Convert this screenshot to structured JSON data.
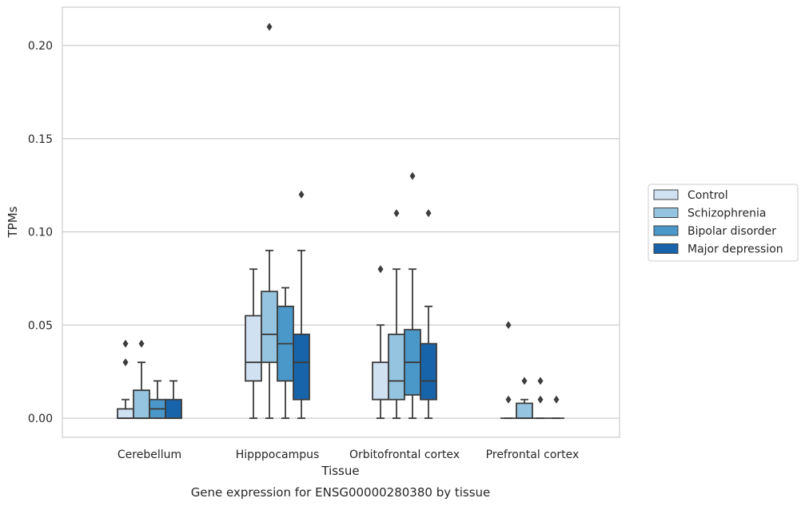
{
  "caption": "Gene expression for ENSG00000280380 by tissue",
  "chart_data": {
    "type": "box",
    "xlabel": "Tissue",
    "ylabel": "TPMs",
    "ylim": [
      -0.01,
      0.22
    ],
    "yticks": [
      0.0,
      0.05,
      0.1,
      0.15,
      0.2
    ],
    "ytick_labels": [
      "0.00",
      "0.05",
      "0.10",
      "0.15",
      "0.20"
    ],
    "grid": "horizontal",
    "legend_position": "right",
    "categories": [
      "Cerebellum",
      "Hipppocampus",
      "Orbitofrontal cortex",
      "Prefrontal cortex"
    ],
    "series": [
      {
        "name": "Control",
        "color": "#d0e1f2",
        "boxes": [
          {
            "whislo": 0.0,
            "q1": 0.0,
            "med": 0.0,
            "q3": 0.005,
            "whishi": 0.01,
            "fliers": [
              0.03,
              0.04
            ]
          },
          {
            "whislo": 0.0,
            "q1": 0.02,
            "med": 0.03,
            "q3": 0.055,
            "whishi": 0.08,
            "fliers": []
          },
          {
            "whislo": 0.0,
            "q1": 0.01,
            "med": 0.01,
            "q3": 0.03,
            "whishi": 0.05,
            "fliers": [
              0.08
            ]
          },
          {
            "whislo": 0.0,
            "q1": 0.0,
            "med": 0.0,
            "q3": 0.0,
            "whishi": 0.0,
            "fliers": [
              0.01,
              0.05
            ]
          }
        ]
      },
      {
        "name": "Schizophrenia",
        "color": "#94c4df",
        "boxes": [
          {
            "whislo": 0.0,
            "q1": 0.0,
            "med": 0.0,
            "q3": 0.015,
            "whishi": 0.03,
            "fliers": [
              0.04
            ]
          },
          {
            "whislo": 0.0,
            "q1": 0.03,
            "med": 0.045,
            "q3": 0.068,
            "whishi": 0.09,
            "fliers": [
              0.21
            ]
          },
          {
            "whislo": 0.0,
            "q1": 0.01,
            "med": 0.02,
            "q3": 0.045,
            "whishi": 0.08,
            "fliers": [
              0.11
            ]
          },
          {
            "whislo": 0.0,
            "q1": 0.0,
            "med": 0.0,
            "q3": 0.008,
            "whishi": 0.01,
            "fliers": [
              0.02
            ]
          }
        ]
      },
      {
        "name": "Bipolar disorder",
        "color": "#4a98c9",
        "boxes": [
          {
            "whislo": 0.0,
            "q1": 0.0,
            "med": 0.005,
            "q3": 0.01,
            "whishi": 0.02,
            "fliers": []
          },
          {
            "whislo": 0.0,
            "q1": 0.02,
            "med": 0.04,
            "q3": 0.06,
            "whishi": 0.07,
            "fliers": []
          },
          {
            "whislo": 0.0,
            "q1": 0.0125,
            "med": 0.03,
            "q3": 0.0475,
            "whishi": 0.08,
            "fliers": [
              0.13
            ]
          },
          {
            "whislo": 0.0,
            "q1": 0.0,
            "med": 0.0,
            "q3": 0.0,
            "whishi": 0.0,
            "fliers": [
              0.01,
              0.02
            ]
          }
        ]
      },
      {
        "name": "Major depression",
        "color": "#1764ab",
        "boxes": [
          {
            "whislo": 0.0,
            "q1": 0.0,
            "med": 0.0,
            "q3": 0.01,
            "whishi": 0.02,
            "fliers": []
          },
          {
            "whislo": 0.0,
            "q1": 0.01,
            "med": 0.03,
            "q3": 0.045,
            "whishi": 0.09,
            "fliers": [
              0.12
            ]
          },
          {
            "whislo": 0.0,
            "q1": 0.01,
            "med": 0.02,
            "q3": 0.04,
            "whishi": 0.06,
            "fliers": [
              0.11
            ]
          },
          {
            "whislo": 0.0,
            "q1": 0.0,
            "med": 0.0,
            "q3": 0.0,
            "whishi": 0.0,
            "fliers": [
              0.01
            ]
          }
        ]
      }
    ]
  }
}
